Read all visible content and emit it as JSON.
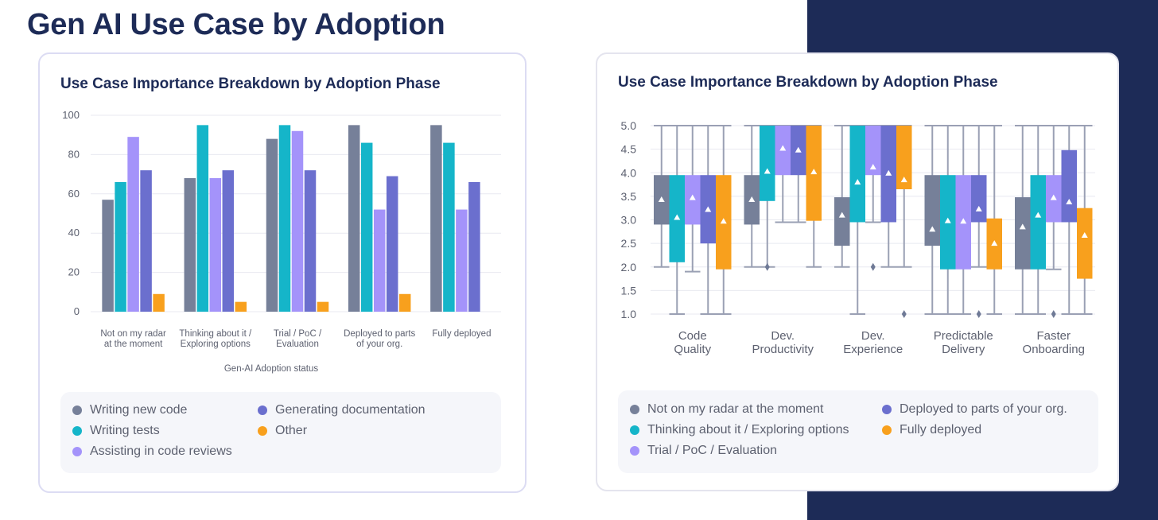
{
  "page_title": "Gen AI Use Case by Adoption",
  "colors": {
    "navy": "#1d2b57",
    "grid": "#e8e9f0",
    "axis_text": "#5d6170",
    "series": [
      "#768099",
      "#15b5c9",
      "#a493fa",
      "#6b6fce",
      "#f8a01d"
    ]
  },
  "chart_data": [
    {
      "type": "bar",
      "title": "Use Case Importance Breakdown by Adoption Phase",
      "xlabel": "Gen-AI Adoption status",
      "ylabel": "",
      "ylim": [
        0,
        100
      ],
      "yticks": [
        "0",
        "20",
        "40",
        "60",
        "80",
        "100"
      ],
      "categories": [
        [
          "Not on my radar",
          "at the moment"
        ],
        [
          "Thinking about it /",
          "Exploring options"
        ],
        [
          "Trial / PoC /",
          "Evaluation"
        ],
        [
          "Deployed to parts",
          "of your org."
        ],
        [
          "Fully deployed"
        ]
      ],
      "series": [
        {
          "name": "Writing new code",
          "values": [
            57,
            68,
            88,
            95,
            95
          ]
        },
        {
          "name": "Writing tests",
          "values": [
            66,
            95,
            95,
            86,
            86
          ]
        },
        {
          "name": "Assisting in code reviews",
          "values": [
            89,
            68,
            92,
            52,
            52
          ]
        },
        {
          "name": "Generating documentation",
          "values": [
            72,
            72,
            72,
            69,
            66
          ]
        },
        {
          "name": "Other",
          "values": [
            9,
            5,
            5,
            9,
            0
          ]
        }
      ],
      "legend": [
        "Writing new code",
        "Generating documentation",
        "Writing tests",
        "Other",
        "Assisting in code reviews"
      ],
      "legend_position": "bottom"
    },
    {
      "type": "box",
      "title": "Use Case Importance Breakdown by Adoption Phase",
      "ylim": [
        1.0,
        5.0
      ],
      "yticks": [
        "5.0",
        "4.5",
        "4.0",
        "3.5",
        "3.0",
        "2.5",
        "2.0",
        "1.5",
        "1.0"
      ],
      "categories": [
        [
          "Code",
          "Quality"
        ],
        [
          "Dev.",
          "Productivity"
        ],
        [
          "Dev.",
          "Experience"
        ],
        [
          "Predictable",
          "Delivery"
        ],
        [
          "Faster",
          "Onboarding"
        ]
      ],
      "series_names": [
        "Not on my radar at the moment",
        "Thinking about it / Exploring options",
        "Trial / PoC / Evaluation",
        "Deployed to parts of your org.",
        "Fully deployed"
      ],
      "boxes": [
        [
          {
            "whisker_low": 2,
            "q1": 2.9,
            "q3": 3.95,
            "whisker_high": 5,
            "mean": 3.43
          },
          {
            "whisker_low": 1,
            "q1": 2.1,
            "q3": 3.95,
            "whisker_high": 5,
            "mean": 3.05
          },
          {
            "whisker_low": 1.9,
            "q1": 2.9,
            "q3": 3.95,
            "whisker_high": 5,
            "mean": 3.47
          },
          {
            "whisker_low": 1,
            "q1": 2.5,
            "q3": 3.95,
            "whisker_high": 5,
            "mean": 3.22
          },
          {
            "whisker_low": 1,
            "q1": 1.95,
            "q3": 3.95,
            "whisker_high": 5,
            "mean": 2.97
          }
        ],
        [
          {
            "whisker_low": 2,
            "q1": 2.9,
            "q3": 3.95,
            "whisker_high": 5,
            "mean": 3.43
          },
          {
            "whisker_low": 2,
            "q1": 3.4,
            "q3": 5,
            "whisker_high": 5,
            "mean": 4.03,
            "outliers": [
              2
            ]
          },
          {
            "whisker_low": 2.95,
            "q1": 3.95,
            "q3": 5,
            "whisker_high": 5,
            "mean": 4.52
          },
          {
            "whisker_low": 2.95,
            "q1": 3.95,
            "q3": 5,
            "whisker_high": 5,
            "mean": 4.48
          },
          {
            "whisker_low": 2,
            "q1": 2.98,
            "q3": 5,
            "whisker_high": 5,
            "mean": 4.02
          }
        ],
        [
          {
            "whisker_low": 2,
            "q1": 2.45,
            "q3": 3.48,
            "whisker_high": 5,
            "mean": 3.1
          },
          {
            "whisker_low": 1,
            "q1": 2.95,
            "q3": 5,
            "whisker_high": 5,
            "mean": 3.8
          },
          {
            "whisker_low": 2.95,
            "q1": 3.95,
            "q3": 5,
            "whisker_high": 5,
            "mean": 4.12,
            "outliers": [
              2
            ]
          },
          {
            "whisker_low": 2,
            "q1": 2.95,
            "q3": 5,
            "whisker_high": 5,
            "mean": 3.99
          },
          {
            "whisker_low": 2,
            "q1": 3.65,
            "q3": 5,
            "whisker_high": 5,
            "mean": 3.85,
            "outliers": [
              1
            ]
          }
        ],
        [
          {
            "whisker_low": 1,
            "q1": 2.45,
            "q3": 3.95,
            "whisker_high": 5,
            "mean": 2.8
          },
          {
            "whisker_low": 1,
            "q1": 1.95,
            "q3": 3.95,
            "whisker_high": 5,
            "mean": 2.98
          },
          {
            "whisker_low": 1,
            "q1": 1.95,
            "q3": 3.95,
            "whisker_high": 5,
            "mean": 2.97
          },
          {
            "whisker_low": 2,
            "q1": 2.95,
            "q3": 3.95,
            "whisker_high": 5,
            "mean": 3.23,
            "outliers": [
              1
            ]
          },
          {
            "whisker_low": 1,
            "q1": 1.95,
            "q3": 3.03,
            "whisker_high": 5,
            "mean": 2.5
          }
        ],
        [
          {
            "whisker_low": 1,
            "q1": 1.95,
            "q3": 3.48,
            "whisker_high": 5,
            "mean": 2.85
          },
          {
            "whisker_low": 1,
            "q1": 1.95,
            "q3": 3.95,
            "whisker_high": 5,
            "mean": 3.1
          },
          {
            "whisker_low": 1.95,
            "q1": 2.95,
            "q3": 3.95,
            "whisker_high": 5,
            "mean": 3.47,
            "outliers": [
              1
            ]
          },
          {
            "whisker_low": 1,
            "q1": 2.95,
            "q3": 4.48,
            "whisker_high": 5,
            "mean": 3.38
          },
          {
            "whisker_low": 1,
            "q1": 1.75,
            "q3": 3.25,
            "whisker_high": 5,
            "mean": 2.67
          }
        ]
      ],
      "legend": [
        "Not on my radar at the moment",
        "Deployed to parts of your org.",
        "Thinking about it / Exploring options",
        "Fully deployed",
        "Trial / PoC / Evaluation"
      ],
      "legend_position": "bottom"
    }
  ]
}
